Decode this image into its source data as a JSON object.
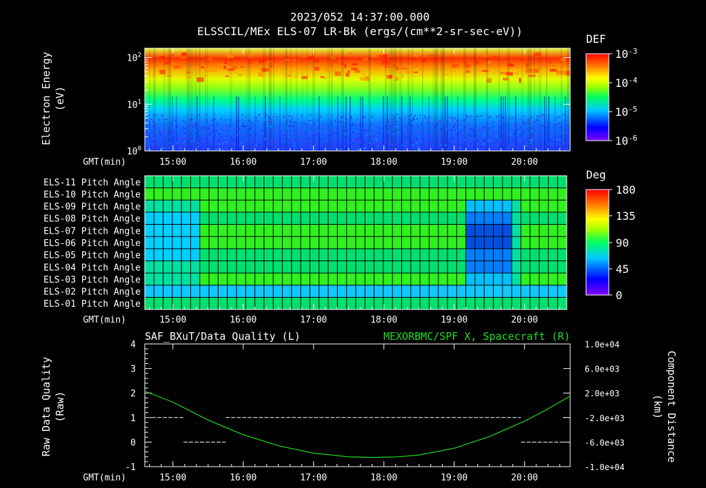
{
  "header": {
    "timestamp": "2023/052 14:37:00.000",
    "title": "ELSSCIL/MEx ELS-07 LR-Bk  (ergs/(cm**2-sr-sec-eV))"
  },
  "colors": {
    "background": "#000000",
    "axis": "#ffffff",
    "right_series": "#22dd22",
    "colormap": [
      "#8000ff",
      "#0000ff",
      "#00c0ff",
      "#00ff60",
      "#a0ff00",
      "#ffff00",
      "#ff8000",
      "#ff0000"
    ]
  },
  "chart_data": [
    {
      "type": "heatmap",
      "name": "energy-spectrogram",
      "ylabel": "Electron Energy",
      "ylabel_unit": "(eV)",
      "xlabel": "GMT(min)",
      "x_ticks": [
        "15:00",
        "16:00",
        "17:00",
        "18:00",
        "19:00",
        "20:00"
      ],
      "y_ticks": [
        {
          "base": "10",
          "exp": "0"
        },
        {
          "base": "10",
          "exp": "1"
        },
        {
          "base": "10",
          "exp": "2"
        }
      ],
      "ylim_log10": [
        0,
        2.2
      ],
      "colorbar": {
        "title": "DEF",
        "ticks": [
          {
            "base": "10",
            "exp": "-3"
          },
          {
            "base": "10",
            "exp": "-4"
          },
          {
            "base": "10",
            "exp": "-5"
          },
          {
            "base": "10",
            "exp": "-6"
          }
        ]
      }
    },
    {
      "type": "heatmap",
      "name": "pitch-angle-grid",
      "xlabel": "GMT(min)",
      "x_ticks": [
        "15:00",
        "16:00",
        "17:00",
        "18:00",
        "19:00",
        "20:00"
      ],
      "rows": [
        "ELS-11 Pitch Angle",
        "ELS-10 Pitch Angle",
        "ELS-09 Pitch Angle",
        "ELS-08 Pitch Angle",
        "ELS-07 Pitch Angle",
        "ELS-06 Pitch Angle",
        "ELS-05 Pitch Angle",
        "ELS-04 Pitch Angle",
        "ELS-03 Pitch Angle",
        "ELS-02 Pitch Angle",
        "ELS-01 Pitch Angle"
      ],
      "colorbar": {
        "title": "Deg",
        "ticks": [
          "180",
          "135",
          "90",
          "45",
          "0"
        ]
      }
    },
    {
      "type": "line",
      "name": "data-quality-and-spacecraft-x",
      "left_title": "SAF_BXuT/Data Quality (L)",
      "right_title": "MEXORBMC/SPF X, Spacecraft (R)",
      "xlabel": "GMT(min)",
      "x_ticks": [
        "15:00",
        "16:00",
        "17:00",
        "18:00",
        "19:00",
        "20:00"
      ],
      "x_range_hours": [
        14.6,
        20.65
      ],
      "left_ylabel": "Raw Data Quality",
      "left_yunit": "(Raw)",
      "left_ylim": [
        -1,
        4
      ],
      "left_ticks": [
        "4",
        "3",
        "2",
        "1",
        "0",
        "-1"
      ],
      "right_ylabel": "Component Distance",
      "right_yunit": "(km)",
      "right_ylim": [
        -10000,
        10000
      ],
      "right_ticks": [
        "1.0e+04",
        "6.0e+03",
        "2.0e+03",
        "-2.0e+03",
        "-6.0e+03",
        "-1.0e+04"
      ],
      "quality_segments": [
        {
          "x0": 14.7,
          "x1": 15.15,
          "y": 1
        },
        {
          "x0": 15.15,
          "x1": 15.75,
          "y": 0
        },
        {
          "x0": 15.75,
          "x1": 19.95,
          "y": 1
        },
        {
          "x0": 19.95,
          "x1": 20.55,
          "y": 0
        },
        {
          "x0": 20.55,
          "x1": 20.6,
          "y": 1
        }
      ],
      "spacecraft_x": {
        "x": [
          14.6,
          15.0,
          15.5,
          16.0,
          16.5,
          17.0,
          17.5,
          17.85,
          18.2,
          18.5,
          19.0,
          19.5,
          20.0,
          20.3,
          20.65
        ],
        "values": [
          2300,
          500,
          -2400,
          -4800,
          -6600,
          -7800,
          -8400,
          -8500,
          -8400,
          -8100,
          -7000,
          -5100,
          -2600,
          -800,
          1500
        ]
      }
    }
  ]
}
